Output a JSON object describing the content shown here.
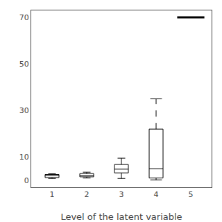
{
  "chart_data": {
    "type": "box",
    "xlabel": "Level of the latent variable",
    "xlim": [
      0.4,
      5.6
    ],
    "xticks": [
      1,
      2,
      3,
      4,
      5
    ],
    "ylim": [
      -3,
      73
    ],
    "yticks": [
      0,
      10,
      30,
      50,
      70
    ],
    "grid": false,
    "color": "black",
    "boxes": [
      {
        "x": 1,
        "q1": 1.2,
        "median": 2.0,
        "q3": 2.5,
        "whisker_low": 0.8,
        "whisker_high": 2.8,
        "line_style": "solid"
      },
      {
        "x": 2,
        "q1": 1.5,
        "median": 2.2,
        "q3": 2.9,
        "whisker_low": 1.0,
        "whisker_high": 3.5,
        "line_style": "solid"
      },
      {
        "x": 3,
        "q1": 3.2,
        "median": 4.8,
        "q3": 6.8,
        "whisker_low": 0.8,
        "whisker_high": 9.5,
        "line_style": "solid"
      },
      {
        "x": 4,
        "q1": 1.0,
        "median": 5.0,
        "q3": 22.0,
        "whisker_low": 0.2,
        "whisker_high": 35.0,
        "line_style": "dashed"
      },
      {
        "x": 5,
        "flier": 70.0
      }
    ]
  }
}
